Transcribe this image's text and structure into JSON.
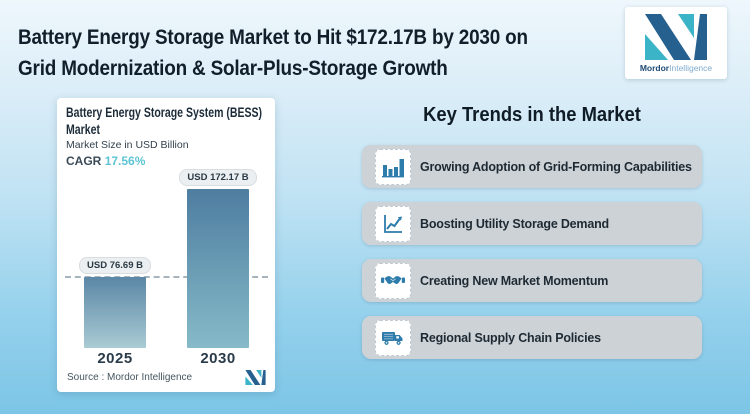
{
  "header": {
    "title_line1": "Battery Energy Storage Market to Hit $172.17B by 2030 on",
    "title_line2": "Grid Modernization & Solar-Plus-Storage Growth",
    "logo": {
      "brand_bold": "Mordor",
      "brand_light": "Intelligence"
    }
  },
  "chart_card": {
    "title_line1": "Battery Energy Storage System (BESS)",
    "title_line2": "Market",
    "subtitle": "Market Size in USD Billion",
    "cagr_label": "CAGR",
    "cagr_value": "17.56%",
    "source_label": "Source :  Mordor Intelligence"
  },
  "chart_data": {
    "type": "bar",
    "title": "Battery Energy Storage System (BESS) Market",
    "ylabel": "Market Size in USD Billion",
    "xlabel": "",
    "cagr_pct": 17.56,
    "categories": [
      "2025",
      "2030"
    ],
    "values": [
      76.69,
      172.17
    ],
    "value_labels": [
      "USD 76.69 B",
      "USD 172.17 B"
    ],
    "unit": "USD Billion",
    "ylim": [
      0,
      172.17
    ],
    "reference_line_at": 76.69,
    "grid": false,
    "legend": "none",
    "bar_gradients": [
      [
        "#5b87a6",
        "#a9cbd4"
      ],
      [
        "#4e7da0",
        "#86bac8"
      ]
    ]
  },
  "trends": {
    "heading": "Key Trends in the Market",
    "items": [
      {
        "icon": "bar-chart-icon",
        "label": "Growing Adoption of Grid-Forming Capabilities"
      },
      {
        "icon": "line-chart-icon",
        "label": "Boosting Utility Storage Demand"
      },
      {
        "icon": "handshake-icon",
        "label": "Creating New Market Momentum"
      },
      {
        "icon": "truck-icon",
        "label": "Regional Supply Chain Policies"
      }
    ]
  },
  "colors": {
    "accent_teal": "#5ec4d4",
    "brand_navy": "#1f4e79",
    "brand_teal": "#3cb4c7",
    "icon_blue": "#2e7cab",
    "trend_box_gray": "#cdd2d6",
    "reference_line_gray": "#a8b4bb",
    "background_top": "#eef7fc",
    "background_bottom": "#7cc5e6"
  }
}
